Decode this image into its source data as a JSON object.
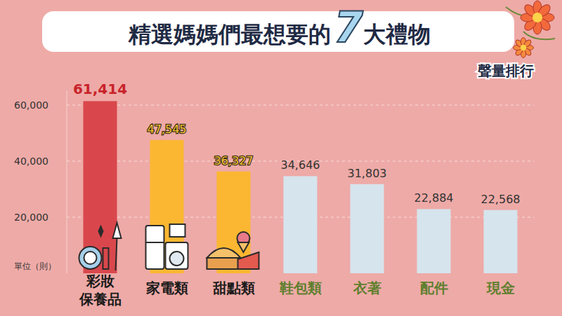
{
  "chart_data": {
    "type": "bar",
    "title": "精選媽媽們最想要的7大禮物",
    "subtitle": "聲量排行",
    "y_label": "單位（則）",
    "categories": [
      "彩妝保養品",
      "家電類",
      "甜點類",
      "鞋包類",
      "衣著",
      "配件",
      "現金"
    ],
    "values": [
      61414,
      47545,
      36327,
      34646,
      31803,
      22884,
      22568
    ],
    "value_labels": [
      "61,414",
      "47,545",
      "36,327",
      "34,646",
      "31,803",
      "22,884",
      "22,568"
    ],
    "colors": [
      "#d9474c",
      "#fbb731",
      "#fbb731",
      "#d6e4ed",
      "#d6e4ed",
      "#d6e4ed",
      "#d6e4ed"
    ],
    "ylim": [
      0,
      65000
    ],
    "yticks": [
      {
        "value": 20000,
        "label": "20,000"
      },
      {
        "value": 40000,
        "label": "40,000"
      },
      {
        "value": 60000,
        "label": "60,000"
      }
    ],
    "grid": true,
    "data_labels": true
  }
}
